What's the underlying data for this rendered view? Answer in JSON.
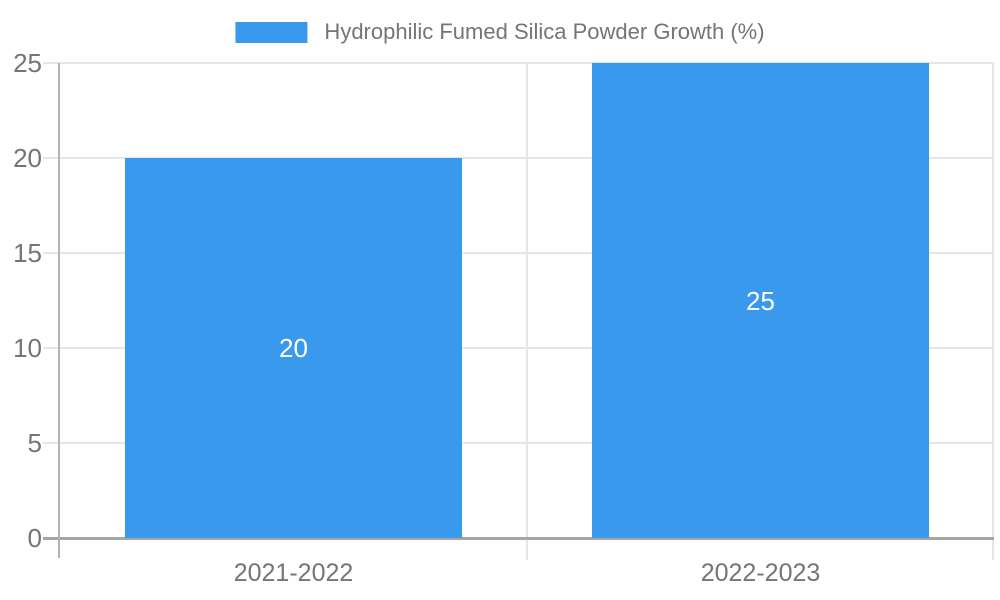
{
  "chart_data": {
    "type": "bar",
    "title": "",
    "legend_position": "top",
    "categories": [
      "2021-2022",
      "2022-2023"
    ],
    "series": [
      {
        "name": "Hydrophilic Fumed Silica Powder Growth (%)",
        "values": [
          20,
          25
        ]
      }
    ],
    "value_labels": [
      "20",
      "25"
    ],
    "ylim": [
      0,
      25
    ],
    "yticks": [
      0,
      5,
      10,
      15,
      20,
      25
    ],
    "grid": true,
    "colors": {
      "bar": "#3999EC",
      "value_label": "#FFFFFF",
      "axis_text": "#757575",
      "gridline": "#E6E6E6",
      "axis_line": "#A6A6A6",
      "y_axis_line": "#B3B3B3",
      "background": "#FFFFFF"
    }
  }
}
